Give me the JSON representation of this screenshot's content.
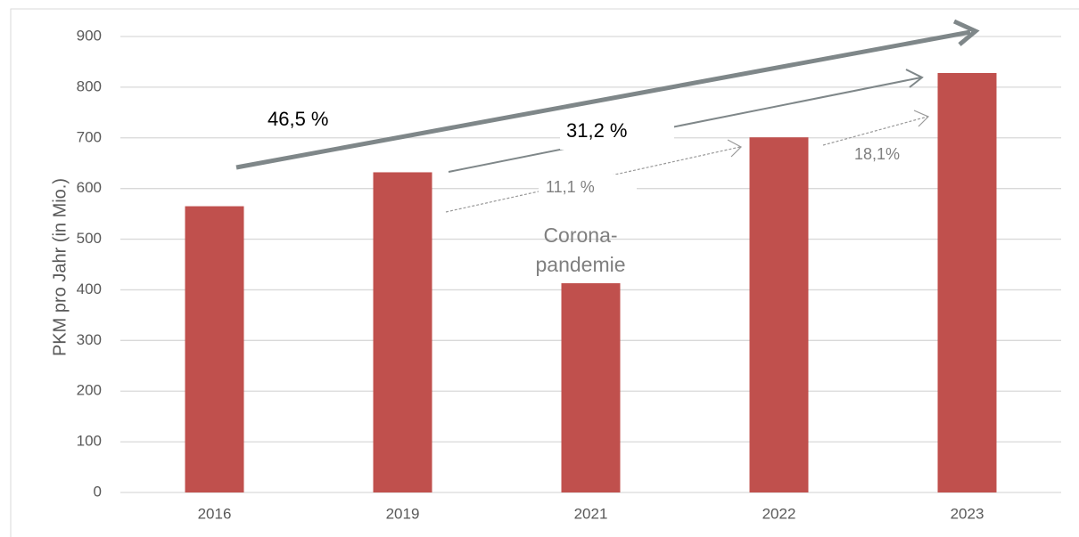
{
  "chart_data": {
    "type": "bar",
    "y_label": "PKM pro Jahr (in Mio.)",
    "categories": [
      "2016",
      "2019",
      "2021",
      "2022",
      "2023"
    ],
    "values": [
      565,
      632,
      413,
      701,
      828
    ],
    "color": "#c0504d",
    "ylim": [
      0,
      900
    ],
    "yticks": [
      0,
      100,
      200,
      300,
      400,
      500,
      600,
      700,
      800,
      900
    ],
    "grid": true,
    "annotations": [
      "46,5 %",
      "31,2 %",
      "11,1 %",
      "18,1%",
      "Corona-",
      "pandemie"
    ]
  }
}
